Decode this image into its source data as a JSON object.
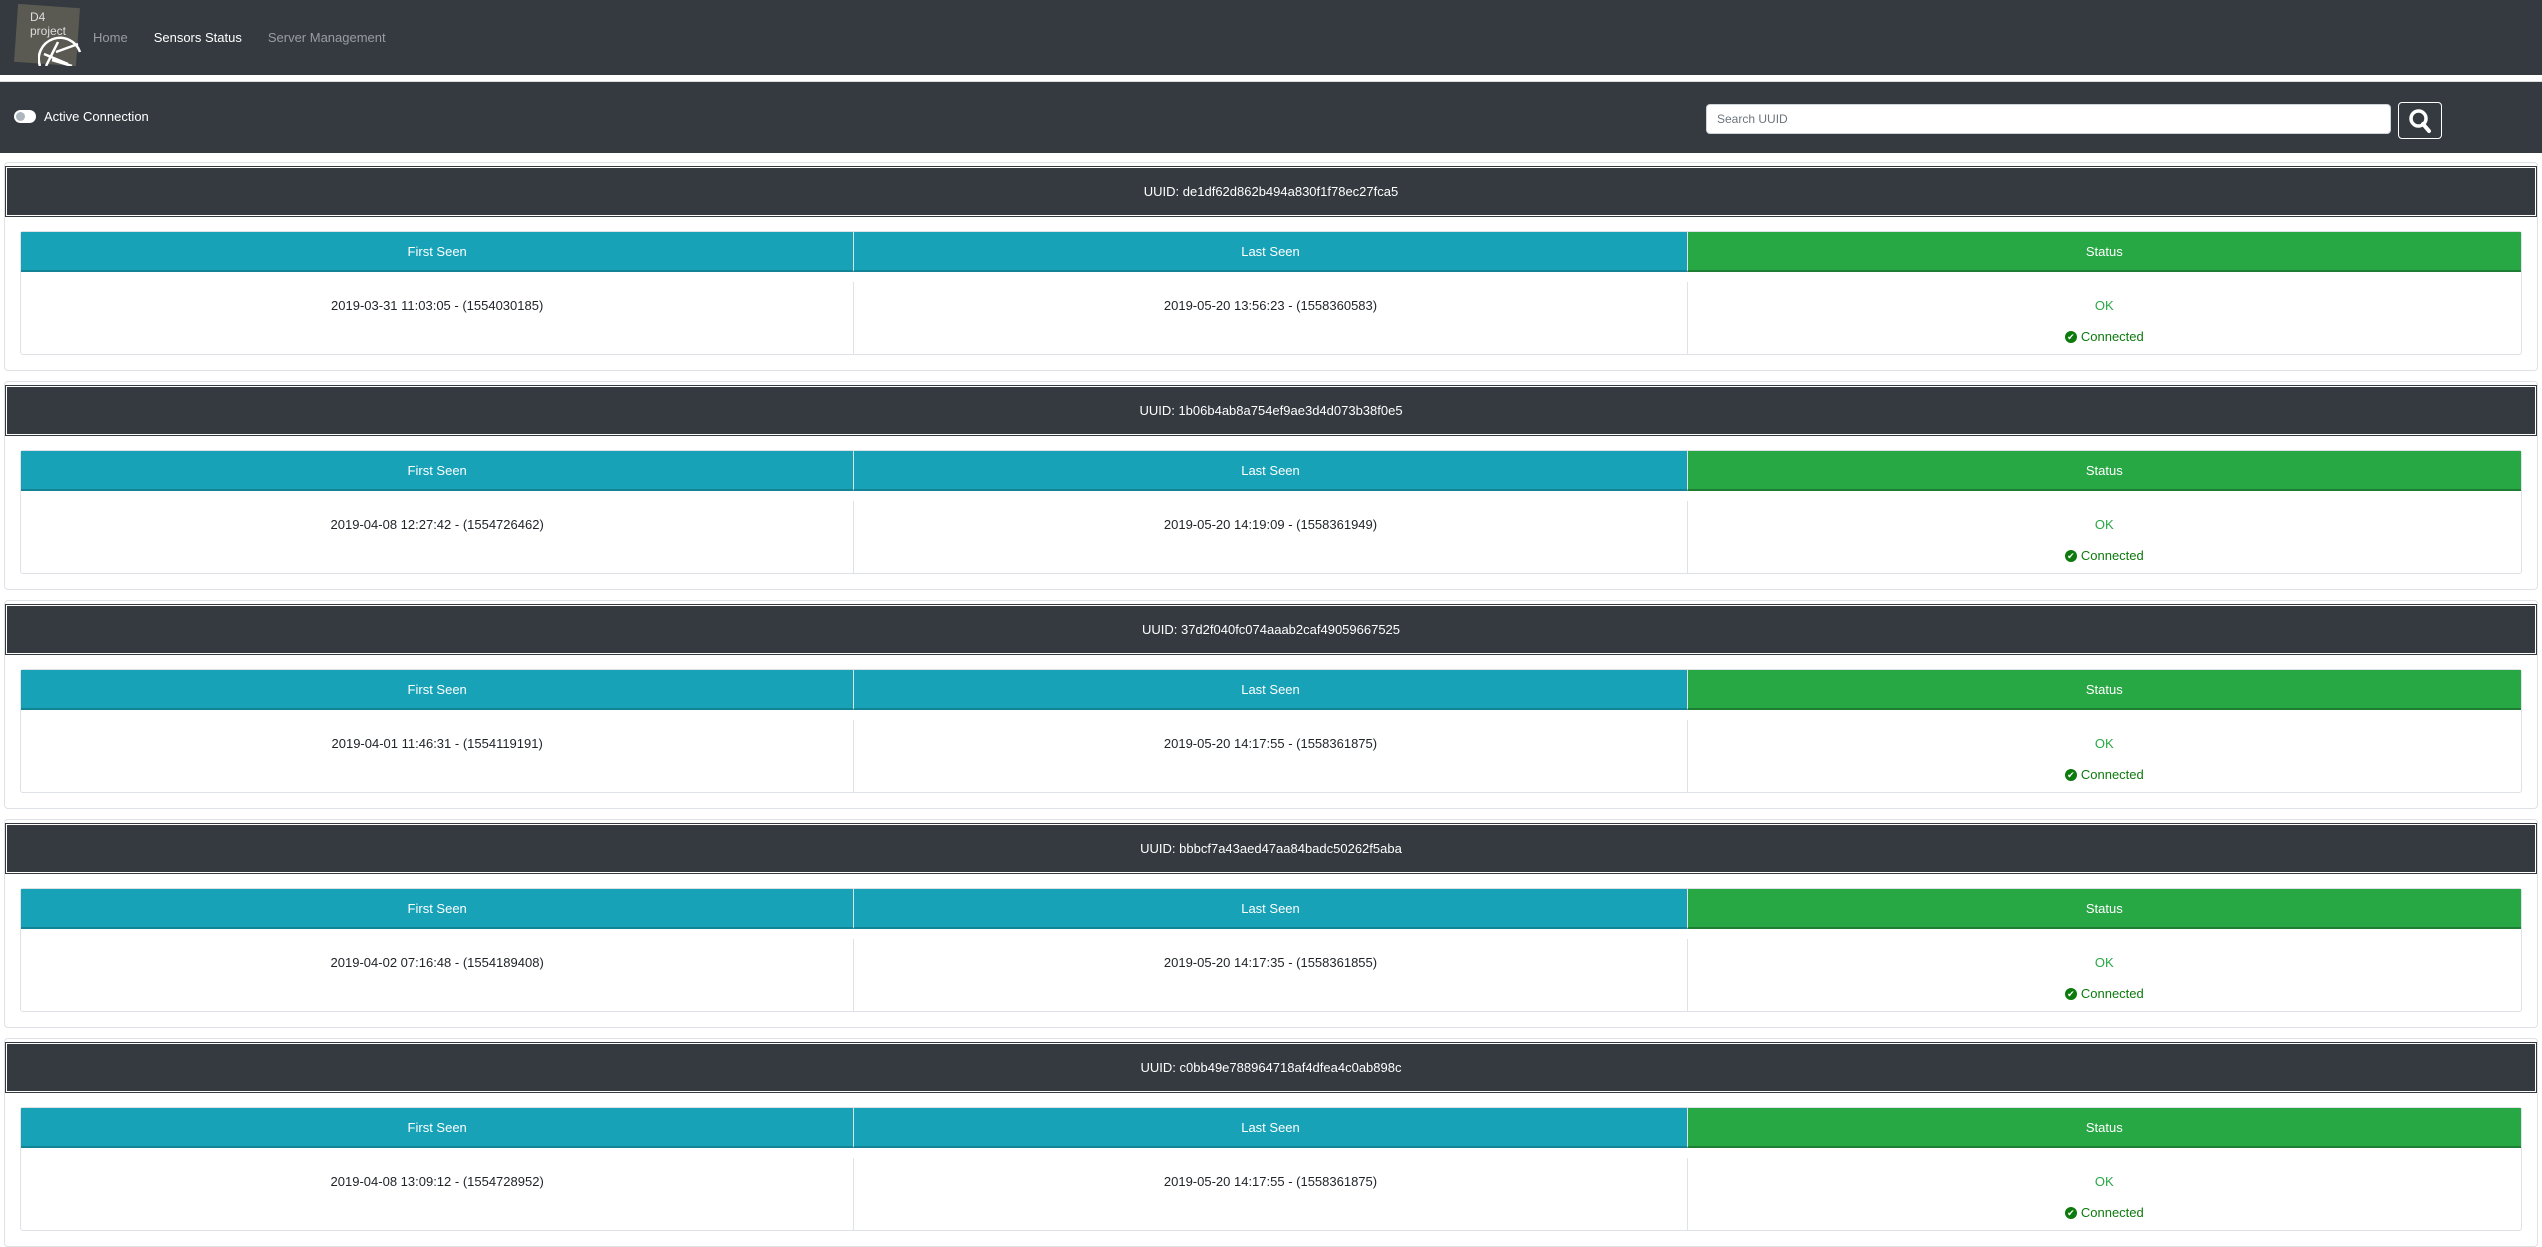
{
  "nav": {
    "logo_text": "D4 project",
    "links": [
      {
        "label": "Home"
      },
      {
        "label": "Sensors Status",
        "active": true
      },
      {
        "label": "Server Management"
      }
    ]
  },
  "toolbar": {
    "toggle_label": "Active Connection",
    "toggle_on": false,
    "search_placeholder": "Search UUID",
    "search_value": "",
    "search_icon": "search-icon"
  },
  "table_headers": {
    "first_seen": "First Seen",
    "last_seen": "Last Seen",
    "status": "Status"
  },
  "colors": {
    "header_info": "#17a2b8",
    "header_status": "#28a745",
    "dark": "#343a40"
  },
  "sensors": [
    {
      "uuid": "UUID: de1df62d862b494a830f1f78ec27fca5",
      "first_seen": "2019-03-31 11:03:05 - (1554030185)",
      "last_seen": "2019-05-20 13:56:23 - (1558360583)",
      "status": "OK",
      "connection": "Connected"
    },
    {
      "uuid": "UUID: 1b06b4ab8a754ef9ae3d4d073b38f0e5",
      "first_seen": "2019-04-08 12:27:42 - (1554726462)",
      "last_seen": "2019-05-20 14:19:09 - (1558361949)",
      "status": "OK",
      "connection": "Connected"
    },
    {
      "uuid": "UUID: 37d2f040fc074aaab2caf49059667525",
      "first_seen": "2019-04-01 11:46:31 - (1554119191)",
      "last_seen": "2019-05-20 14:17:55 - (1558361875)",
      "status": "OK",
      "connection": "Connected"
    },
    {
      "uuid": "UUID: bbbcf7a43aed47aa84badc50262f5aba",
      "first_seen": "2019-04-02 07:16:48 - (1554189408)",
      "last_seen": "2019-05-20 14:17:35 - (1558361855)",
      "status": "OK",
      "connection": "Connected"
    },
    {
      "uuid": "UUID: c0bb49e788964718af4dfea4c0ab898c",
      "first_seen": "2019-04-08 13:09:12 - (1554728952)",
      "last_seen": "2019-05-20 14:17:55 - (1558361875)",
      "status": "OK",
      "connection": "Connected"
    }
  ]
}
